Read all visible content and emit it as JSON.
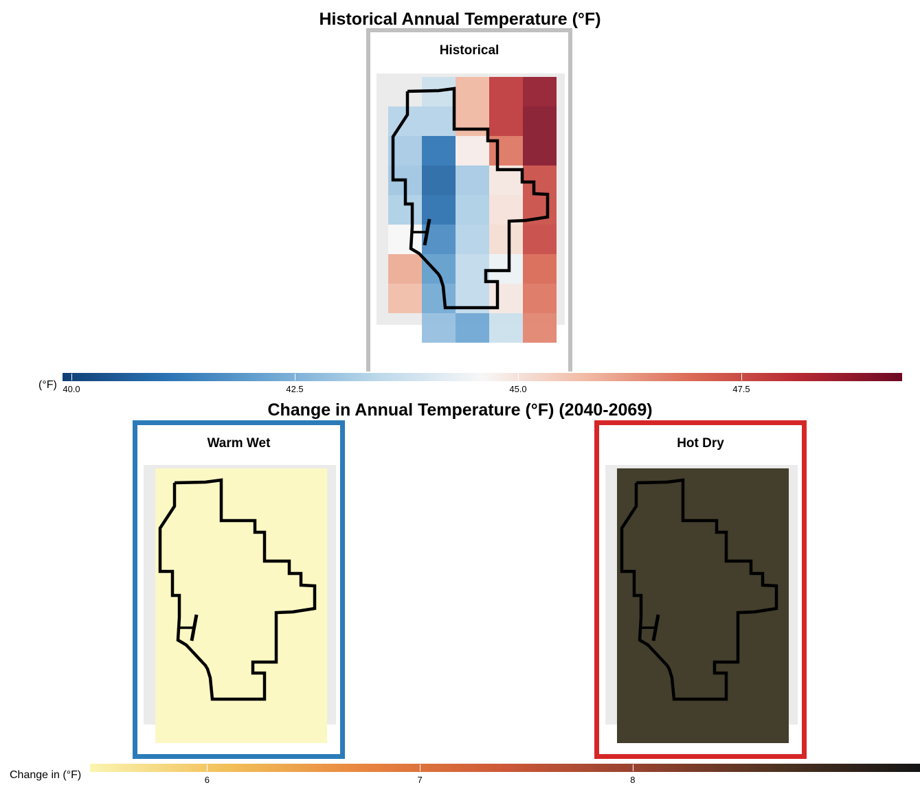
{
  "figure": {
    "top_title": "Historical Annual Temperature (°F)",
    "bottom_title": "Change in Annual Temperature (°F) (2040-2069)"
  },
  "panels": {
    "historical": {
      "label": "Historical",
      "frame_color": "#c0c0c0"
    },
    "warm_wet": {
      "label": "Warm Wet",
      "frame_color": "#2b7bb9",
      "fill_color": "#fbf8c4"
    },
    "hot_dry": {
      "label": "Hot Dry",
      "frame_color": "#d62728",
      "fill_color": "#433f2c"
    }
  },
  "colorbars": {
    "historical": {
      "label": "(°F)",
      "range": [
        39.9,
        49.3
      ],
      "ticks": [
        "40.0",
        "42.5",
        "45.0",
        "47.5"
      ],
      "tick_values": [
        40.0,
        42.5,
        45.0,
        47.5
      ],
      "colors": [
        "#0f3e75",
        "#2b73b4",
        "#6ea7d3",
        "#bcd8ea",
        "#f7f7f7",
        "#f1b9a3",
        "#da6a55",
        "#b72a33",
        "#6d0a25"
      ]
    },
    "change": {
      "label": "Change in (°F)",
      "range": [
        5.45,
        9.35
      ],
      "ticks": [
        "6",
        "7",
        "8"
      ],
      "tick_values": [
        6,
        7,
        8
      ],
      "colors": [
        "#fbf4b0",
        "#f2bf58",
        "#e8843f",
        "#cc5838",
        "#93412e",
        "#4d3221",
        "#141414"
      ]
    }
  },
  "chart_data": {
    "type": "heatmap",
    "historical_grid_rows": [
      [
        "",
        43.7,
        45.8,
        47.9,
        48.7
      ],
      [
        43.3,
        43.3,
        45.8,
        47.9,
        48.9
      ],
      [
        43.1,
        41.1,
        44.8,
        46.8,
        48.9
      ],
      [
        43.0,
        40.8,
        43.1,
        44.9,
        47.5
      ],
      [
        43.2,
        41.0,
        43.2,
        45.0,
        47.5
      ],
      [
        44.6,
        41.6,
        43.3,
        45.1,
        47.6
      ],
      [
        46.0,
        42.0,
        43.5,
        44.4,
        47.0
      ],
      [
        45.7,
        42.3,
        43.5,
        44.9,
        46.8
      ],
      [
        "",
        42.8,
        42.2,
        43.7,
        46.6
      ]
    ]
  }
}
